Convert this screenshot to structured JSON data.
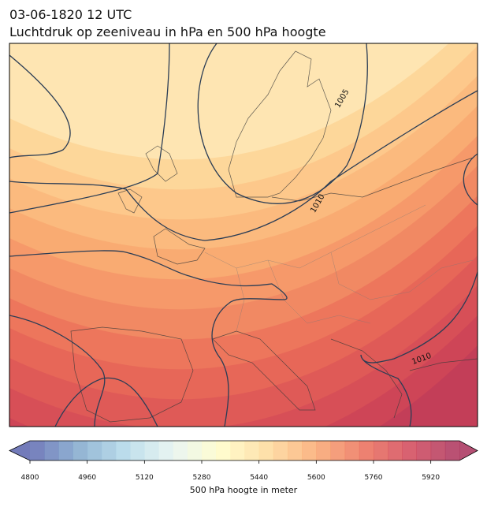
{
  "header": {
    "title_line1": "03-06-1820 12 UTC",
    "title_line2": "Luchtdruk op zeeniveau in hPa en 500 hPa hoogte"
  },
  "isobar_labels": [
    1005,
    1010,
    1010
  ],
  "colorbar": {
    "label": "500 hPa hoogte in meter",
    "min": 4800,
    "max": 6000,
    "step": 40,
    "ticks": [
      4800,
      4960,
      5120,
      5280,
      5440,
      5600,
      5760,
      5920
    ]
  }
}
